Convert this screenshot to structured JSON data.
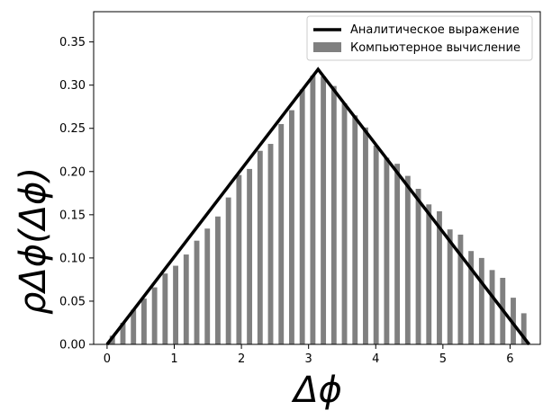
{
  "chart_data": {
    "type": "bar",
    "title": "",
    "xlabel": "Δϕ",
    "ylabel": "ρΔϕ(Δϕ)",
    "xlim": [
      -0.2,
      6.45
    ],
    "ylim": [
      0.0,
      0.385
    ],
    "xticks": [
      0,
      1,
      2,
      3,
      4,
      5,
      6
    ],
    "yticks": [
      0.0,
      0.05,
      0.1,
      0.15,
      0.2,
      0.25,
      0.3,
      0.35
    ],
    "xtick_labels": [
      "0",
      "1",
      "2",
      "3",
      "4",
      "5",
      "6"
    ],
    "ytick_labels": [
      "0.00",
      "0.05",
      "0.10",
      "0.15",
      "0.20",
      "0.25",
      "0.30",
      "0.35"
    ],
    "grid": false,
    "legend_position": "upper right",
    "legend": {
      "line_label": "Аналитическое выражение",
      "bar_label": "Компьютерное вычисление"
    },
    "colors": {
      "line": "#000000",
      "bars": "#808080"
    },
    "analytic_line": {
      "name": "Аналитическое выражение",
      "x": [
        0.0,
        3.1416,
        6.2832
      ],
      "y": [
        0.0,
        0.3183,
        0.0
      ]
    },
    "bars": {
      "name": "Компьютерное вычисление",
      "bar_width": 0.0785,
      "x": [
        0.0785,
        0.2356,
        0.3927,
        0.5498,
        0.7069,
        0.8639,
        1.021,
        1.1781,
        1.3352,
        1.4923,
        1.6493,
        1.8064,
        1.9635,
        2.1206,
        2.2777,
        2.4347,
        2.5918,
        2.7489,
        2.906,
        3.0631,
        3.2201,
        3.3772,
        3.5343,
        3.6914,
        3.8485,
        4.0055,
        4.1626,
        4.3197,
        4.4768,
        4.6339,
        4.7909,
        4.948,
        5.1051,
        5.2622,
        5.4193,
        5.5763,
        5.7334,
        5.8905,
        6.0476,
        6.2047
      ],
      "values": [
        0.01,
        0.025,
        0.04,
        0.053,
        0.066,
        0.082,
        0.091,
        0.104,
        0.12,
        0.134,
        0.148,
        0.17,
        0.196,
        0.203,
        0.224,
        0.232,
        0.255,
        0.271,
        0.295,
        0.311,
        0.31,
        0.299,
        0.279,
        0.265,
        0.251,
        0.23,
        0.216,
        0.209,
        0.195,
        0.18,
        0.162,
        0.154,
        0.133,
        0.127,
        0.108,
        0.1,
        0.086,
        0.077,
        0.054,
        0.036
      ]
    }
  }
}
